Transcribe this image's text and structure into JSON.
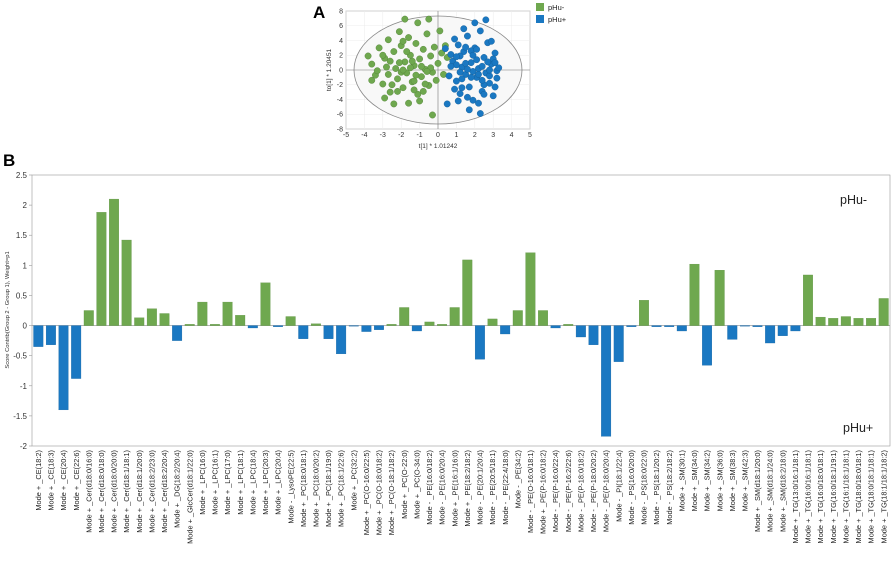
{
  "chart_data": [
    {
      "panel": "A",
      "type": "scatter",
      "xlabel": "t[1] * 1.01242",
      "ylabel": "to[1] * 1.20451",
      "xlim": [
        -5,
        5
      ],
      "ylim": [
        -8,
        8
      ],
      "xticks": [
        -5,
        -4,
        -3,
        -2,
        -1,
        0,
        1,
        2,
        3,
        4,
        5
      ],
      "yticks": [
        -8,
        -6,
        -4,
        -2,
        0,
        2,
        4,
        6,
        8
      ],
      "colors": {
        "pHu-": "#6fa84f",
        "pHu+": "#1a78c2"
      },
      "legend": [
        "pHu-",
        "pHu+"
      ],
      "series": [
        {
          "name": "pHu-",
          "points": [
            [
              -3.6,
              0.8
            ],
            [
              -3.2,
              3.0
            ],
            [
              -3.0,
              -1.9
            ],
            [
              -3.4,
              -0.7
            ],
            [
              -2.9,
              1.6
            ],
            [
              -2.7,
              4.1
            ],
            [
              -2.6,
              -3.0
            ],
            [
              -2.4,
              2.5
            ],
            [
              -2.3,
              0.2
            ],
            [
              -2.2,
              -1.2
            ],
            [
              -2.1,
              5.2
            ],
            [
              -2.0,
              3.3
            ],
            [
              -1.9,
              -2.4
            ],
            [
              -1.8,
              1.1
            ],
            [
              -1.7,
              -0.4
            ],
            [
              -1.6,
              4.4
            ],
            [
              -1.5,
              2.0
            ],
            [
              -1.4,
              -1.6
            ],
            [
              -1.3,
              0.6
            ],
            [
              -1.2,
              3.6
            ],
            [
              -1.1,
              -3.3
            ],
            [
              -1.0,
              1.5
            ],
            [
              -0.9,
              -0.9
            ],
            [
              -0.8,
              2.8
            ],
            [
              -0.7,
              0.1
            ],
            [
              -0.6,
              4.9
            ],
            [
              -0.5,
              -2.1
            ],
            [
              -0.4,
              1.9
            ],
            [
              -0.3,
              -0.3
            ],
            [
              -0.2,
              3.1
            ],
            [
              -0.1,
              -1.4
            ],
            [
              0.0,
              0.9
            ],
            [
              0.2,
              2.3
            ],
            [
              0.3,
              -0.6
            ],
            [
              0.5,
              1.7
            ],
            [
              -2.5,
              -2.0
            ],
            [
              -1.9,
              3.9
            ],
            [
              -1.3,
              -2.7
            ],
            [
              -0.7,
              -1.9
            ],
            [
              -3.3,
              -0.1
            ],
            [
              -2.8,
              0.4
            ],
            [
              -2.0,
              -0.3
            ],
            [
              -1.5,
              0.3
            ],
            [
              -0.9,
              0.5
            ],
            [
              -2.6,
              1.2
            ],
            [
              -1.2,
              -0.7
            ],
            [
              -3.0,
              2.0
            ],
            [
              -1.7,
              2.5
            ],
            [
              -0.4,
              0.3
            ],
            [
              -2.2,
              -2.9
            ],
            [
              -1.0,
              -4.2
            ],
            [
              -1.6,
              -4.5
            ],
            [
              -2.9,
              -3.8
            ],
            [
              -3.8,
              1.9
            ],
            [
              -1.1,
              6.4
            ],
            [
              -0.5,
              6.9
            ],
            [
              -1.8,
              6.9
            ],
            [
              0.1,
              5.3
            ],
            [
              -0.3,
              -6.1
            ],
            [
              -2.4,
              -4.6
            ],
            [
              -0.8,
              -2.9
            ],
            [
              -2.1,
              1.0
            ],
            [
              -1.4,
              1.2
            ],
            [
              0.4,
              3.3
            ],
            [
              -3.6,
              -1.4
            ],
            [
              -2.7,
              -0.6
            ],
            [
              -1.9,
              0.0
            ],
            [
              -0.6,
              -0.2
            ],
            [
              -1.3,
              -1.5
            ]
          ]
        },
        {
          "name": "pHu+",
          "points": [
            [
              0.8,
              1.2
            ],
            [
              1.0,
              -1.5
            ],
            [
              1.1,
              3.4
            ],
            [
              1.2,
              -3.2
            ],
            [
              1.3,
              0.4
            ],
            [
              1.4,
              2.5
            ],
            [
              1.5,
              -0.6
            ],
            [
              1.6,
              4.6
            ],
            [
              1.7,
              -2.3
            ],
            [
              1.8,
              1.0
            ],
            [
              1.9,
              -4.1
            ],
            [
              2.0,
              3.0
            ],
            [
              2.1,
              -1.0
            ],
            [
              2.2,
              0.2
            ],
            [
              2.3,
              5.3
            ],
            [
              2.4,
              -2.9
            ],
            [
              2.5,
              1.7
            ],
            [
              2.6,
              -0.4
            ],
            [
              2.7,
              3.7
            ],
            [
              2.8,
              -1.8
            ],
            [
              2.9,
              0.8
            ],
            [
              3.0,
              -3.5
            ],
            [
              3.1,
              2.3
            ],
            [
              3.2,
              -0.1
            ],
            [
              0.6,
              -0.8
            ],
            [
              0.7,
              2.1
            ],
            [
              0.9,
              -2.6
            ],
            [
              1.0,
              0.7
            ],
            [
              1.2,
              1.9
            ],
            [
              1.3,
              -1.2
            ],
            [
              1.5,
              3.1
            ],
            [
              1.6,
              -3.7
            ],
            [
              1.8,
              2.6
            ],
            [
              1.9,
              -0.2
            ],
            [
              2.1,
              1.4
            ],
            [
              2.2,
              -4.5
            ],
            [
              2.4,
              0.5
            ],
            [
              2.5,
              -2.0
            ],
            [
              2.7,
              1.1
            ],
            [
              2.8,
              -0.8
            ],
            [
              3.0,
              1.5
            ],
            [
              3.1,
              -2.3
            ],
            [
              3.3,
              0.3
            ],
            [
              0.9,
              4.2
            ],
            [
              1.1,
              -4.2
            ],
            [
              1.4,
              5.6
            ],
            [
              1.7,
              -5.4
            ],
            [
              2.0,
              6.4
            ],
            [
              2.3,
              -5.9
            ],
            [
              2.6,
              6.8
            ],
            [
              0.5,
              -4.6
            ],
            [
              1.2,
              -0.3
            ],
            [
              1.5,
              0.9
            ],
            [
              1.8,
              -1.0
            ],
            [
              2.1,
              2.8
            ],
            [
              2.4,
              -1.4
            ],
            [
              2.9,
              3.9
            ],
            [
              3.1,
              1.0
            ],
            [
              0.7,
              0.5
            ],
            [
              1.0,
              1.8
            ],
            [
              1.3,
              -2.4
            ],
            [
              1.6,
              0.1
            ],
            [
              1.9,
              2.0
            ],
            [
              2.2,
              -0.6
            ],
            [
              2.5,
              -3.3
            ],
            [
              2.8,
              0.0
            ],
            [
              3.2,
              -1.1
            ],
            [
              0.4,
              2.9
            ]
          ]
        }
      ]
    },
    {
      "panel": "B",
      "type": "bar",
      "ylabel": "Score Contrib(Group 2 - Group 1), Weight=p1",
      "ylim": [
        -2,
        2.5
      ],
      "yticks": [
        -2,
        -1.5,
        -1,
        -0.5,
        0,
        0.5,
        1,
        1.5,
        2,
        2.5
      ],
      "colors": {
        "positive": "#6fa84f",
        "negative": "#1a78c2"
      },
      "annotations": [
        "pHu-",
        "pHu+"
      ],
      "categories": [
        "Mode + _CE(18:2)",
        "Mode + _CE(18:3)",
        "Mode + _CE(20:4)",
        "Mode + _CE(22:6)",
        "Mode + _Cer(d18:0/16:0)",
        "Mode + _Cer(d18:0/18:0)",
        "Mode + _Cer(d18:0/20:0)",
        "Mode + _Cer(d18:1/18:1)",
        "Mode + _Cer(d18:1/20:0)",
        "Mode + _Cer(d18:2/23:0)",
        "Mode + _Cer(d18:2/20:4)",
        "Mode + _DG(18:2/20:4)",
        "Mode + _GlcCer(d18:1/22:0)",
        "Mode + _LPC(16:0)",
        "Mode + _LPC(16:1)",
        "Mode + _LPC(17:0)",
        "Mode + _LPC(18:1)",
        "Mode + _LPC(18:4)",
        "Mode + _LPC(20:3)",
        "Mode + _LPC(20:4)",
        "Mode - _LysoPE(22:5)",
        "Mode + _PC(18:0/18:1)",
        "Mode + _PC(18:0/20:2)",
        "Mode + _PC(18:1/19:0)",
        "Mode + _PC(18:1/22:6)",
        "Mode + _PC(32:2)",
        "Mode + _PC(O-16:0/22:5)",
        "Mode + _PC(O-18:0/18:2)",
        "Mode + _PC(O-18:1/18:2)",
        "Mode + _PC(O-22:0)",
        "Mode + _PC(O-34:0)",
        "Mode - _PE(16:0/18:2)",
        "Mode - _PE(16:0/20:4)",
        "Mode + _PE(16:1/16:0)",
        "Mode + _PE(18:2/18:2)",
        "Mode - _PE(20:1/20:4)",
        "Mode - _PE(20:5/18:1)",
        "Mode - _PE(22:4/18:0)",
        "Mode - _PE(34:2)",
        "Mode - _PE(O-16:0/18:1)",
        "Mode + _PE(P-16:0/18:2)",
        "Mode - _PE(P-16:0/22:4)",
        "Mode - _PE(P-16:2/22:6)",
        "Mode - _PE(P-18:0/18:2)",
        "Mode - _PE(P-18:0/20:2)",
        "Mode - _PE(P-18:0/20:4)",
        "Mode - _PI(18:1/22:4)",
        "Mode - _PS(16:0/20:0)",
        "Mode - _PS(18:0/22:0)",
        "Mode - _PS(18:1/20:2)",
        "Mode - _PS(18:2/18:2)",
        "Mode + _SM(30:1)",
        "Mode + _SM(34:0)",
        "Mode + _SM(34:2)",
        "Mode + _SM(36:0)",
        "Mode + _SM(38:3)",
        "Mode + _SM(42:3)",
        "Mode + _SM(d18:1/20:0)",
        "Mode + _SM(d18:1/24:0)",
        "Mode + _SM(d18:2/18:0)",
        "Mode + _TG(13:0/16:1/18:1)",
        "Mode + _TG(16:0/16:1/18:1)",
        "Mode + _TG(16:0/18:0/18:1)",
        "Mode + _TG(16:0/18:1/19:1)",
        "Mode + _TG(16:1/18:1/18:1)",
        "Mode + _TG(18:0/18:0/18:1)",
        "Mode + _TG(18:0/18:1/18:1)",
        "Mode + _TG(18:1/18:1/18:2)"
      ],
      "values": [
        -0.35,
        -0.32,
        -1.4,
        -0.88,
        0.25,
        1.88,
        2.1,
        1.42,
        0.13,
        0.28,
        0.2,
        -0.25,
        0.02,
        0.39,
        0.02,
        0.39,
        0.17,
        -0.04,
        0.71,
        -0.02,
        0.15,
        -0.22,
        0.03,
        -0.22,
        -0.47,
        -0.01,
        -0.1,
        -0.07,
        0.02,
        0.3,
        -0.09,
        0.06,
        0.02,
        0.3,
        1.09,
        -0.56,
        0.11,
        -0.14,
        0.25,
        1.21,
        0.25,
        -0.04,
        0.02,
        -0.19,
        -0.32,
        -1.84,
        -0.6,
        -0.02,
        0.42,
        -0.02,
        -0.02,
        -0.09,
        1.02,
        -0.66,
        0.92,
        -0.23,
        -0.01,
        -0.02,
        -0.29,
        -0.17,
        -0.09,
        0.84,
        0.14,
        0.12,
        0.15,
        0.12,
        0.12,
        0.45
      ]
    }
  ]
}
